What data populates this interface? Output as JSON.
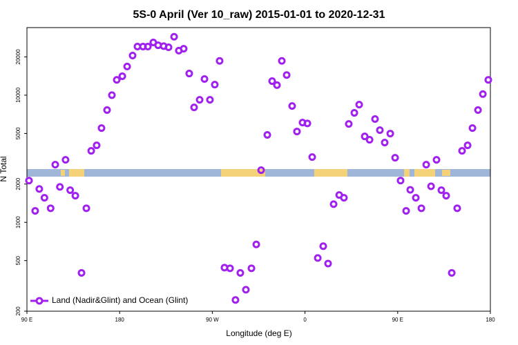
{
  "chart_data": {
    "type": "scatter",
    "title": "5S-0 April (Ver 10_raw)   2015-01-01 to 2020-12-31",
    "x_label": "Longitude (deg E)",
    "y_label": "N Total",
    "log_y": true,
    "legend": "bottom-left",
    "xlim": [
      90,
      540
    ],
    "ylim": [
      200,
      34000
    ],
    "xticks": [
      {
        "value": 90,
        "label": "90 E"
      },
      180,
      {
        "value": 270,
        "label": "90 W"
      },
      {
        "value": 360,
        "label": "0"
      },
      {
        "value": 450,
        "label": "90 E"
      },
      {
        "value": 540,
        "label": "180"
      }
    ],
    "yticks": [
      200,
      500,
      1000,
      2000,
      5000,
      10000,
      20000
    ],
    "series": [
      {
        "name": "Land (Nadir&Glint) and Ocean (Glint)",
        "color": "#a020f0",
        "x": [
          92,
          98,
          102,
          107,
          113,
          117.5,
          122,
          127.5,
          132,
          137,
          143,
          147.7,
          152.4,
          157.7,
          162.4,
          167.8,
          172.5,
          177.2,
          182.6,
          187.3,
          192.6,
          197.3,
          202.7,
          207.4,
          212.7,
          217.4,
          222.8,
          227.5,
          232.9,
          237.5,
          242.2,
          247.6,
          252.3,
          257.7,
          262.4,
          267.7,
          272.4,
          277.1,
          281.8,
          287.2,
          292.5,
          297.2,
          302.6,
          308,
          312.7,
          317.4,
          323.4,
          328.1,
          332.8,
          337.5,
          342.2,
          347.5,
          352.2,
          357.6,
          362.3,
          367,
          372.4,
          377.7,
          382.4,
          387.8,
          393.2,
          397.8,
          402.5,
          407.9,
          412.6,
          418,
          422.7,
          428,
          432.7,
          437.4,
          442.8,
          447.5,
          452.8,
          458.2,
          462.2,
          467.6,
          473,
          477.7,
          482.4,
          487.7,
          492.4,
          497.1,
          502.5,
          507.8,
          512.5,
          517.9,
          522.6,
          528,
          532.7,
          538
        ],
        "values": [
          2130,
          1230,
          1830,
          1560,
          1290,
          2840,
          1900,
          3100,
          1790,
          1620,
          400,
          1290,
          3650,
          4030,
          5510,
          7640,
          10000,
          13200,
          14100,
          16800,
          20500,
          24100,
          24100,
          24100,
          26000,
          24700,
          24300,
          23800,
          28800,
          22400,
          23200,
          14800,
          8020,
          9200,
          13400,
          9200,
          12100,
          18600,
          440,
          435,
          245,
          400,
          295,
          435,
          670,
          2570,
          4870,
          12900,
          12000,
          18600,
          14400,
          8220,
          5180,
          6090,
          6000,
          3260,
          524,
          649,
          474,
          1390,
          1640,
          1560,
          5940,
          7260,
          8430,
          4740,
          4460,
          6490,
          5310,
          4240,
          4990,
          3220,
          2130,
          1230,
          1800,
          1560,
          1290,
          2840,
          1920,
          3100,
          1790,
          1620,
          400,
          1290,
          3650,
          4030,
          5510,
          7640,
          10200,
          13200
        ]
      }
    ]
  }
}
